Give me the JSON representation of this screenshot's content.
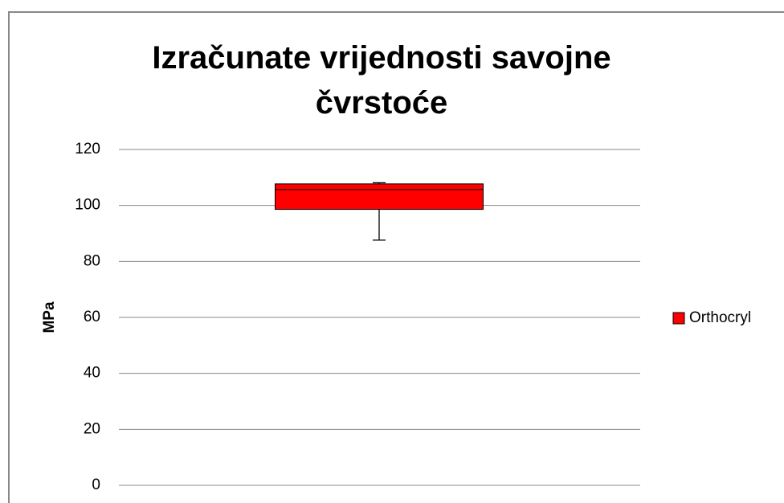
{
  "chart_data": {
    "type": "box",
    "title": "Izračunate vrijednosti savojne čvrstoće",
    "ylabel": "MPa",
    "ylim": [
      0,
      120
    ],
    "yticks": [
      0,
      20,
      40,
      60,
      80,
      100,
      120
    ],
    "grid": true,
    "legend": "right",
    "series": [
      {
        "name": "Orthocryl",
        "color": "#ff0000",
        "min": 87.6,
        "q1": 98.6,
        "median": 105.7,
        "q3": 107.7,
        "max": 108.1
      }
    ]
  }
}
